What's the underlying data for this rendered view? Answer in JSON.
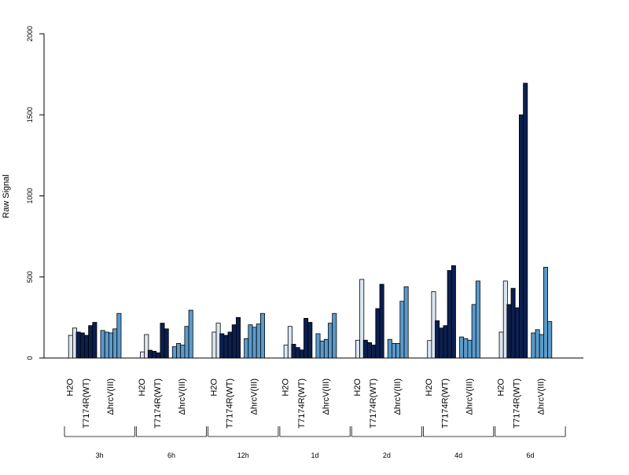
{
  "chart_data": {
    "type": "bar",
    "title": "",
    "xlabel": "",
    "ylabel": "Raw Signal",
    "ylim": [
      0,
      2000
    ],
    "yticks": [
      0,
      500,
      1000,
      1500,
      2000
    ],
    "grid": false,
    "timepoints": [
      "3h",
      "6h",
      "12h",
      "1d",
      "2d",
      "4d",
      "6d"
    ],
    "treatments": [
      "H2O",
      "T7174R(WT)",
      "ΔhrcV(III)"
    ],
    "treatment_colors": [
      "#dce6f2",
      "#0b1f4f",
      "#5a9bcb"
    ],
    "values": [
      [
        [
          0,
          140,
          185
        ],
        [
          160,
          155,
          140,
          200,
          220
        ],
        [
          170,
          160,
          155,
          180,
          275
        ]
      ],
      [
        [
          0,
          38,
          145
        ],
        [
          48,
          42,
          32,
          215,
          180
        ],
        [
          70,
          90,
          80,
          195,
          295
        ]
      ],
      [
        [
          0,
          160,
          215
        ],
        [
          150,
          140,
          160,
          205,
          250
        ],
        [
          120,
          205,
          190,
          210,
          275
        ]
      ],
      [
        [
          0,
          80,
          195
        ],
        [
          85,
          65,
          50,
          245,
          220
        ],
        [
          150,
          105,
          115,
          215,
          275
        ]
      ],
      [
        [
          0,
          110,
          485
        ],
        [
          110,
          95,
          80,
          305,
          455
        ],
        [
          115,
          90,
          90,
          350,
          440
        ]
      ],
      [
        [
          0,
          108,
          410
        ],
        [
          230,
          185,
          200,
          540,
          570
        ],
        [
          130,
          120,
          110,
          330,
          475
        ]
      ],
      [
        [
          0,
          160,
          475
        ],
        [
          330,
          430,
          310,
          1500,
          1695
        ],
        [
          155,
          175,
          145,
          560,
          225
        ]
      ]
    ]
  }
}
